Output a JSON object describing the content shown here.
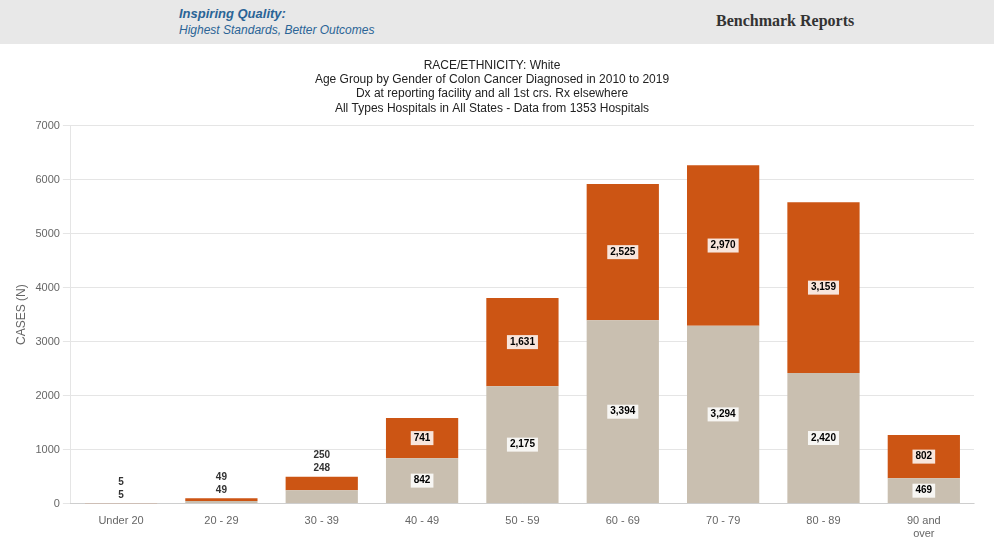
{
  "chart_data": {
    "type": "bar",
    "title": "RACE/ETHNICITY: White\nAge Group by Gender of Colon Cancer Diagnosed in 2010 to 2019\nDx at reporting facility and all 1st crs. Rx elsewhere\nAll Types Hospitals in All States - Data from 1353 Hospitals",
    "annotations": [
      "Inspiring Quality:",
      "Highest Standards, Better Outcomes",
      "Benchmark Reports"
    ],
    "ylabel": "CASES (N)",
    "categories": [
      "Under 20",
      "20 - 29",
      "30 - 39",
      "40 - 49",
      "50 - 59",
      "60 - 69",
      "70 - 79",
      "80 - 89",
      "90 and\nover"
    ],
    "series": [
      {
        "color": "#c9bfb0",
        "values": [
          5,
          49,
          248,
          842,
          2175,
          3394,
          3294,
          2420,
          469
        ],
        "value_labels": [
          "5",
          "49",
          "248",
          "842",
          "2,175",
          "3,394",
          "3,294",
          "2,420",
          "469"
        ]
      },
      {
        "color": "#cc5514",
        "values": [
          5,
          49,
          250,
          741,
          1631,
          2525,
          2970,
          3159,
          802
        ],
        "value_labels": [
          "5",
          "49",
          "250",
          "741",
          "1,631",
          "2,525",
          "2,970",
          "3,159",
          "802"
        ]
      }
    ],
    "ylim": [
      0,
      7000
    ],
    "yticks": [
      0,
      1000,
      2000,
      3000,
      4000,
      5000,
      6000,
      7000
    ],
    "stacked": true,
    "grid": true,
    "data_labels": true
  }
}
